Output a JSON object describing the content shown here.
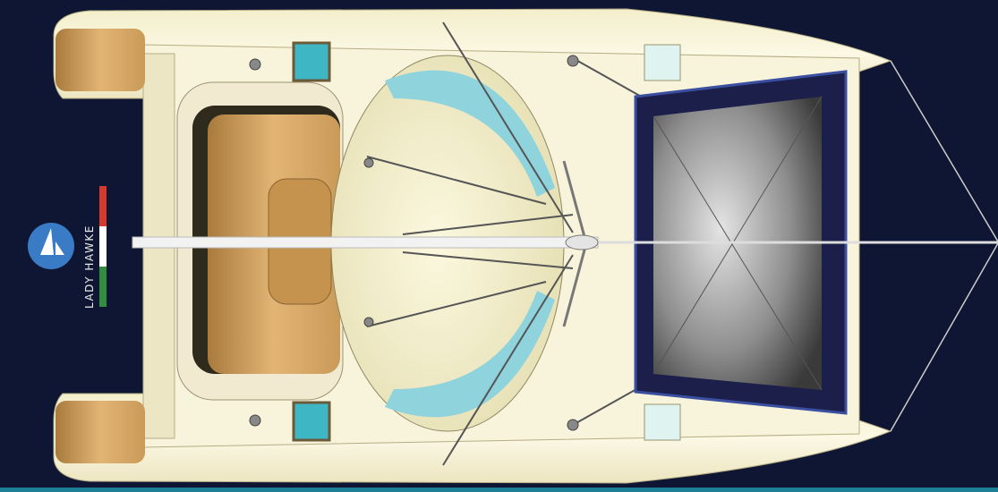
{
  "logo": {
    "name": "LADY HAWKE"
  }
}
